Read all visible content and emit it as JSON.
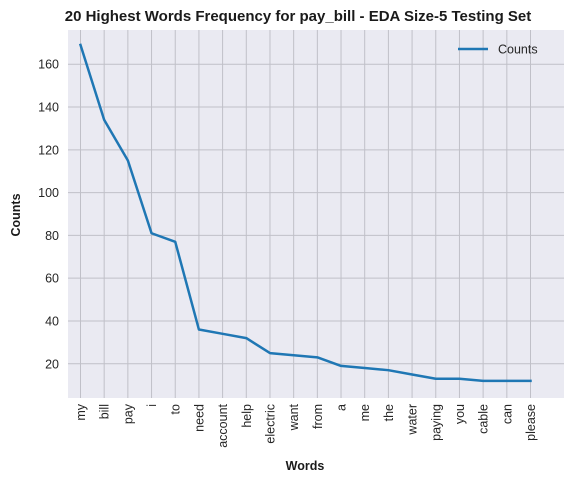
{
  "chart_data": {
    "type": "line",
    "title": "20 Highest Words Frequency for pay_bill - EDA Size-5 Testing Set",
    "xlabel": "Words",
    "ylabel": "Counts",
    "categories": [
      "my",
      "bill",
      "pay",
      "i",
      "to",
      "need",
      "account",
      "help",
      "electric",
      "want",
      "from",
      "a",
      "me",
      "the",
      "water",
      "paying",
      "you",
      "cable",
      "can",
      "please"
    ],
    "series": [
      {
        "name": "Counts",
        "color": "#1f77b4",
        "values": [
          169,
          134,
          115,
          81,
          77,
          36,
          34,
          32,
          25,
          24,
          23,
          19,
          18,
          17,
          15,
          13,
          13,
          12,
          12,
          12
        ]
      }
    ],
    "ylim": [
      4,
      176
    ],
    "yticks": [
      20,
      40,
      60,
      80,
      100,
      120,
      140,
      160
    ],
    "grid": true,
    "legend_position": "top-right",
    "background_color": "#eaeaf2",
    "grid_color": "#c0c0c8"
  }
}
